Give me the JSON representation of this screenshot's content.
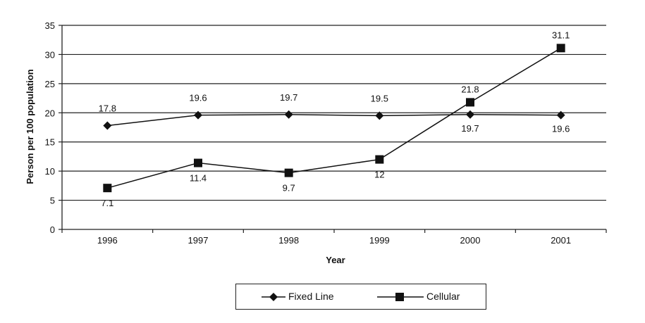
{
  "chart_data": {
    "type": "line",
    "title": "",
    "xlabel": "Year",
    "ylabel": "Person per 100 population",
    "categories": [
      "1996",
      "1997",
      "1998",
      "1999",
      "2000",
      "2001"
    ],
    "ylim": [
      0,
      35
    ],
    "yticks": [
      0,
      5,
      10,
      15,
      20,
      25,
      30,
      35
    ],
    "grid": true,
    "legend_position": "bottom",
    "series": [
      {
        "name": "Fixed Line",
        "marker": "diamond",
        "color": "#111111",
        "values": [
          17.8,
          19.6,
          19.7,
          19.5,
          19.7,
          19.6
        ],
        "labels": [
          "17.8",
          "19.6",
          "19.7",
          "19.5",
          "19.7",
          "19.6"
        ]
      },
      {
        "name": "Cellular",
        "marker": "square",
        "color": "#111111",
        "values": [
          7.1,
          11.4,
          9.7,
          12,
          21.8,
          31.1
        ],
        "labels": [
          "7.1",
          "11.4",
          "9.7",
          "12",
          "21.8",
          "31.1"
        ]
      }
    ]
  }
}
